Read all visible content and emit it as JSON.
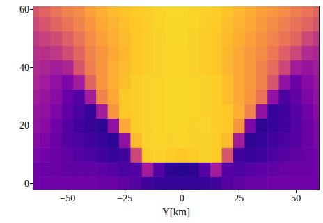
{
  "chart_data": {
    "type": "heatmap",
    "xlabel": "Y[km]",
    "xlim": [
      -65,
      60
    ],
    "ylim": [
      -2,
      61
    ],
    "xticks": [
      {
        "value": -50,
        "label": "−50"
      },
      {
        "value": -25,
        "label": "−25"
      },
      0,
      25,
      50
    ],
    "yticks": [
      0,
      20,
      40,
      60
    ],
    "zlim": [
      0,
      1
    ],
    "x": [
      -65,
      -60,
      -55,
      -50,
      -45,
      -40,
      -35,
      -30,
      -25,
      -20,
      -15,
      -10,
      -5,
      0,
      5,
      10,
      15,
      20,
      25,
      30,
      35,
      40,
      45,
      50,
      55,
      60
    ],
    "y": [
      0,
      5,
      10,
      15,
      20,
      25,
      30,
      35,
      40,
      45,
      50,
      55,
      60
    ],
    "values": [
      [
        0.22,
        0.22,
        0.22,
        0.22,
        0.22,
        0.22,
        0.2,
        0.2,
        0.18,
        0.15,
        0.1,
        0.08,
        0.08,
        0.08,
        0.08,
        0.08,
        0.1,
        0.15,
        0.18,
        0.2,
        0.2,
        0.22,
        0.22,
        0.22,
        0.22,
        0.22
      ],
      [
        0.22,
        0.2,
        0.2,
        0.18,
        0.18,
        0.18,
        0.17,
        0.15,
        0.12,
        0.15,
        0.35,
        0.15,
        0.06,
        0.05,
        0.06,
        0.15,
        0.35,
        0.15,
        0.12,
        0.15,
        0.17,
        0.18,
        0.2,
        0.2,
        0.2,
        0.22
      ],
      [
        0.25,
        0.22,
        0.2,
        0.18,
        0.15,
        0.12,
        0.1,
        0.08,
        0.1,
        0.5,
        0.9,
        0.92,
        0.9,
        0.88,
        0.9,
        0.92,
        0.9,
        0.55,
        0.1,
        0.08,
        0.1,
        0.12,
        0.15,
        0.18,
        0.2,
        0.22
      ],
      [
        0.28,
        0.25,
        0.2,
        0.15,
        0.12,
        0.1,
        0.08,
        0.06,
        0.3,
        0.85,
        0.92,
        0.93,
        0.92,
        0.93,
        0.92,
        0.92,
        0.9,
        0.85,
        0.35,
        0.06,
        0.08,
        0.1,
        0.12,
        0.15,
        0.2,
        0.25
      ],
      [
        0.3,
        0.28,
        0.22,
        0.15,
        0.1,
        0.08,
        0.06,
        0.3,
        0.8,
        0.9,
        0.92,
        0.93,
        0.94,
        0.93,
        0.92,
        0.93,
        0.9,
        0.88,
        0.75,
        0.25,
        0.06,
        0.08,
        0.1,
        0.15,
        0.2,
        0.25
      ],
      [
        0.32,
        0.3,
        0.25,
        0.18,
        0.12,
        0.08,
        0.35,
        0.75,
        0.88,
        0.9,
        0.92,
        0.93,
        0.94,
        0.94,
        0.93,
        0.92,
        0.9,
        0.88,
        0.82,
        0.7,
        0.3,
        0.08,
        0.1,
        0.15,
        0.22,
        0.28
      ],
      [
        0.35,
        0.32,
        0.28,
        0.2,
        0.15,
        0.35,
        0.7,
        0.8,
        0.88,
        0.9,
        0.92,
        0.93,
        0.94,
        0.94,
        0.93,
        0.92,
        0.9,
        0.86,
        0.8,
        0.75,
        0.65,
        0.3,
        0.12,
        0.18,
        0.25,
        0.3
      ],
      [
        0.38,
        0.35,
        0.3,
        0.25,
        0.35,
        0.6,
        0.75,
        0.82,
        0.86,
        0.9,
        0.92,
        0.93,
        0.94,
        0.94,
        0.93,
        0.92,
        0.9,
        0.86,
        0.8,
        0.76,
        0.7,
        0.55,
        0.3,
        0.2,
        0.28,
        0.32
      ],
      [
        0.4,
        0.38,
        0.35,
        0.38,
        0.55,
        0.68,
        0.75,
        0.82,
        0.85,
        0.88,
        0.9,
        0.92,
        0.93,
        0.93,
        0.92,
        0.9,
        0.88,
        0.84,
        0.8,
        0.76,
        0.7,
        0.62,
        0.5,
        0.35,
        0.32,
        0.35
      ],
      [
        0.42,
        0.42,
        0.45,
        0.52,
        0.6,
        0.7,
        0.75,
        0.8,
        0.84,
        0.88,
        0.9,
        0.92,
        0.93,
        0.93,
        0.92,
        0.9,
        0.88,
        0.84,
        0.8,
        0.76,
        0.72,
        0.66,
        0.58,
        0.5,
        0.4,
        0.38
      ],
      [
        0.45,
        0.48,
        0.52,
        0.58,
        0.65,
        0.72,
        0.78,
        0.82,
        0.85,
        0.88,
        0.9,
        0.92,
        0.94,
        0.94,
        0.92,
        0.9,
        0.88,
        0.85,
        0.82,
        0.78,
        0.74,
        0.7,
        0.65,
        0.6,
        0.5,
        0.45
      ],
      [
        0.5,
        0.55,
        0.6,
        0.65,
        0.7,
        0.75,
        0.8,
        0.83,
        0.86,
        0.88,
        0.9,
        0.93,
        0.94,
        0.94,
        0.93,
        0.91,
        0.89,
        0.86,
        0.83,
        0.8,
        0.76,
        0.72,
        0.68,
        0.64,
        0.6,
        0.55
      ],
      [
        0.55,
        0.6,
        0.65,
        0.7,
        0.72,
        0.78,
        0.82,
        0.85,
        0.87,
        0.89,
        0.91,
        0.93,
        0.95,
        0.95,
        0.93,
        0.92,
        0.9,
        0.87,
        0.84,
        0.81,
        0.78,
        0.75,
        0.72,
        0.68,
        0.65,
        0.6
      ]
    ]
  }
}
